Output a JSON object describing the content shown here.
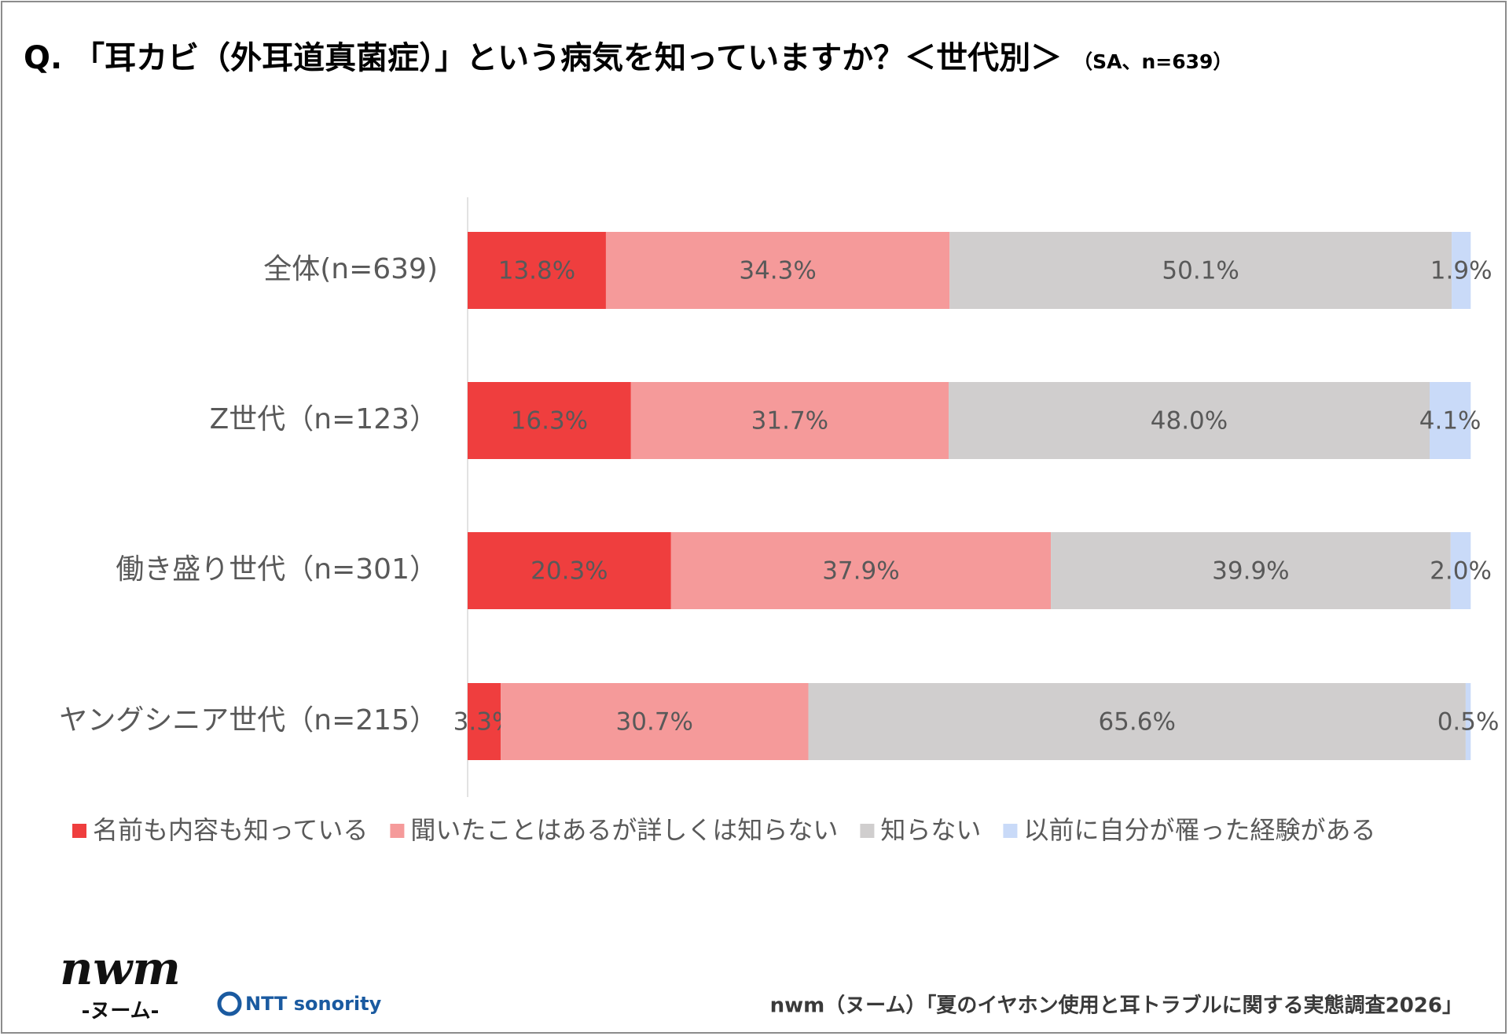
{
  "chart_data": {
    "type": "stacked-bar-horizontal",
    "title": "Q. 「耳カビ（外耳道真菌症）」という病気を知っていますか？＜世代別＞",
    "subtitle": "（SA、n=639）",
    "categories": [
      "全体(n=639)",
      "Z世代（n=123）",
      "働き盛り世代（n=301）",
      "ヤングシニア世代（n=215）"
    ],
    "xlim": [
      0,
      100
    ],
    "series": [
      {
        "name": "名前も内容も知っている",
        "color": "#ef3e3e",
        "values": [
          13.8,
          16.3,
          20.3,
          3.3
        ],
        "value_labels": [
          "13.8%",
          "16.3%",
          "20.3%",
          "3.3%"
        ]
      },
      {
        "name": "聞いたことはあるが詳しくは知らない",
        "color": "#f59a9a",
        "values": [
          34.3,
          31.7,
          37.9,
          30.7
        ],
        "value_labels": [
          "34.3%",
          "31.7%",
          "37.9%",
          "30.7%"
        ]
      },
      {
        "name": "知らない",
        "color": "#d0cece",
        "values": [
          50.1,
          48.0,
          39.9,
          65.6
        ],
        "value_labels": [
          "50.1%",
          "48.0%",
          "39.9%",
          "65.6%"
        ]
      },
      {
        "name": "以前に自分が罹った経験がある",
        "color": "#c9daf8",
        "values": [
          1.9,
          4.1,
          2.0,
          0.5
        ],
        "value_labels": [
          "1.9%",
          "4.1%",
          "2.0%",
          "0.5%"
        ]
      }
    ],
    "legend": "bottom",
    "source": "nwm（ヌーム）「夏のイヤホン使用と耳トラブルに関する実態調査2026」",
    "logos": [
      "nwm",
      "-ヌーム-",
      "NTT sonority"
    ]
  }
}
